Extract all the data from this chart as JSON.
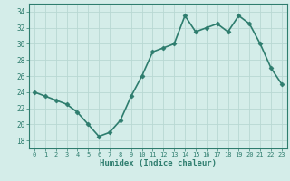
{
  "x": [
    0,
    1,
    2,
    3,
    4,
    5,
    6,
    7,
    8,
    9,
    10,
    11,
    12,
    13,
    14,
    15,
    16,
    17,
    18,
    19,
    20,
    21,
    22,
    23
  ],
  "y": [
    24,
    23.5,
    23,
    22.5,
    21.5,
    20,
    18.5,
    19,
    20.5,
    23.5,
    26,
    29,
    29.5,
    30,
    33.5,
    31.5,
    32,
    32.5,
    31.5,
    33.5,
    32.5,
    30,
    27,
    25
  ],
  "xlabel": "Humidex (Indice chaleur)",
  "ylabel": "",
  "xlim": [
    -0.5,
    23.5
  ],
  "ylim": [
    17,
    35
  ],
  "yticks": [
    18,
    20,
    22,
    24,
    26,
    28,
    30,
    32,
    34
  ],
  "xticks": [
    0,
    1,
    2,
    3,
    4,
    5,
    6,
    7,
    8,
    9,
    10,
    11,
    12,
    13,
    14,
    15,
    16,
    17,
    18,
    19,
    20,
    21,
    22,
    23
  ],
  "line_color": "#2e7d6e",
  "marker": "D",
  "markersize": 2.5,
  "bg_color": "#d4ede9",
  "grid_color": "#b8d8d3",
  "axis_color": "#2e7d6e",
  "tick_color": "#2e7d6e",
  "label_color": "#2e7d6e",
  "linewidth": 1.2
}
